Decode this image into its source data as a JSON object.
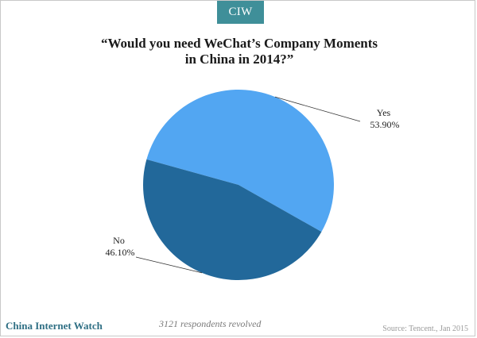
{
  "header": {
    "badge": "CIW"
  },
  "chart_data": {
    "type": "pie",
    "title": "“Would you need WeChat’s Company Moments\nin China in 2014?”",
    "slices": [
      {
        "label": "Yes",
        "value": 53.9,
        "value_label": "53.90%",
        "color": "#52a6f2"
      },
      {
        "label": "No",
        "value": 46.1,
        "value_label": "46.10%",
        "color": "#22689a"
      }
    ]
  },
  "footer": {
    "brand": "China Internet Watch",
    "note": "3121 respondents revolved",
    "source": "Source: Tencent., Jan 2015"
  }
}
